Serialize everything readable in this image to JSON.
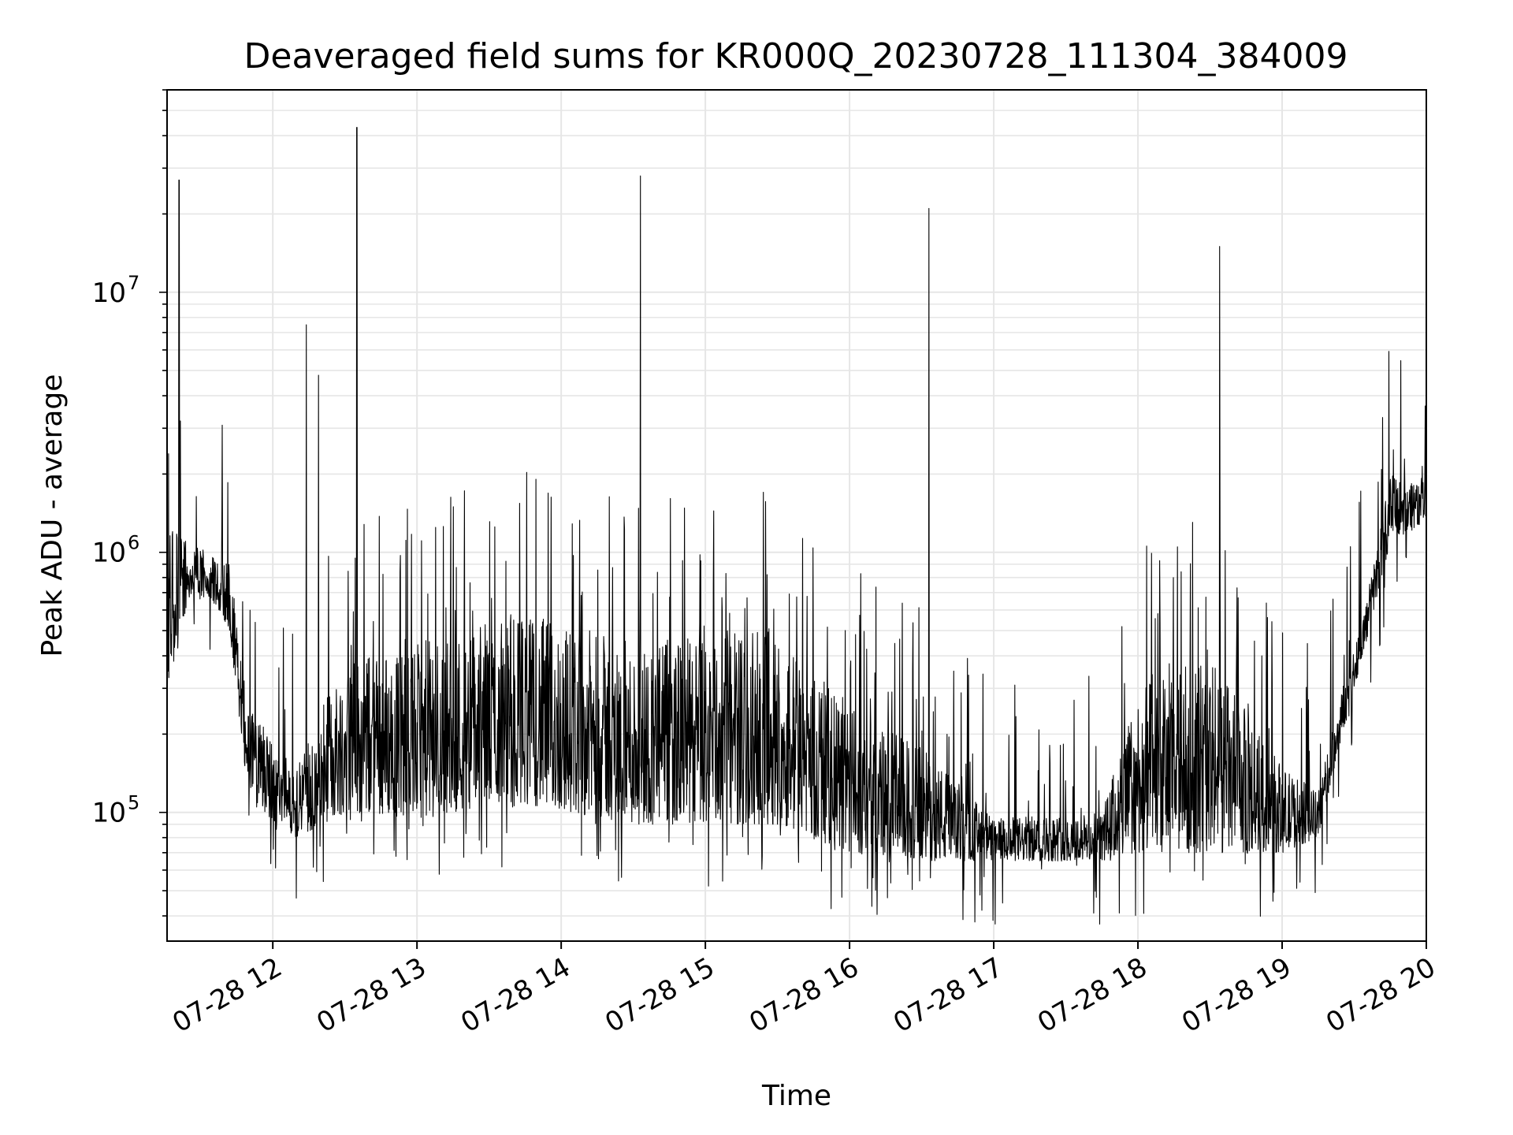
{
  "chart_data": {
    "type": "line",
    "title": "Deaveraged field sums for KR000Q_20230728_111304_384009",
    "xlabel": "Time",
    "ylabel": "Peak ADU - average",
    "y_scale": "log",
    "grid": true,
    "line_color": "#000000",
    "grid_color": "#e6e6e6",
    "xlim": [
      "07-28 11:16",
      "07-28 20:00"
    ],
    "ylim": [
      32000,
      60000000
    ],
    "x_ticks": [
      {
        "value": "07-28 12:00",
        "label": "07-28 12"
      },
      {
        "value": "07-28 13:00",
        "label": "07-28 13"
      },
      {
        "value": "07-28 14:00",
        "label": "07-28 14"
      },
      {
        "value": "07-28 15:00",
        "label": "07-28 15"
      },
      {
        "value": "07-28 16:00",
        "label": "07-28 16"
      },
      {
        "value": "07-28 17:00",
        "label": "07-28 17"
      },
      {
        "value": "07-28 18:00",
        "label": "07-28 18"
      },
      {
        "value": "07-28 19:00",
        "label": "07-28 19"
      },
      {
        "value": "07-28 20:00",
        "label": "07-28 20"
      }
    ],
    "y_ticks": [
      {
        "value": 100000,
        "base": "10",
        "exp": "5"
      },
      {
        "value": 1000000,
        "base": "10",
        "exp": "6"
      },
      {
        "value": 10000000,
        "base": "10",
        "exp": "7"
      }
    ],
    "baseline": [
      {
        "t": "07-28 11:16",
        "lo": 300000,
        "hi": 1400000
      },
      {
        "t": "07-28 11:25",
        "lo": 650000,
        "hi": 1100000
      },
      {
        "t": "07-28 11:35",
        "lo": 650000,
        "hi": 1000000
      },
      {
        "t": "07-28 11:42",
        "lo": 500000,
        "hi": 900000
      },
      {
        "t": "07-28 11:50",
        "lo": 110000,
        "hi": 250000
      },
      {
        "t": "07-28 12:10",
        "lo": 80000,
        "hi": 150000
      },
      {
        "t": "07-28 12:30",
        "lo": 100000,
        "hi": 400000
      },
      {
        "t": "07-28 13:00",
        "lo": 95000,
        "hi": 450000
      },
      {
        "t": "07-28 13:40",
        "lo": 110000,
        "hi": 600000
      },
      {
        "t": "07-28 14:30",
        "lo": 90000,
        "hi": 450000
      },
      {
        "t": "07-28 15:30",
        "lo": 90000,
        "hi": 500000
      },
      {
        "t": "07-28 16:00",
        "lo": 70000,
        "hi": 250000
      },
      {
        "t": "07-28 16:30",
        "lo": 65000,
        "hi": 180000
      },
      {
        "t": "07-28 17:00",
        "lo": 65000,
        "hi": 95000
      },
      {
        "t": "07-28 17:45",
        "lo": 65000,
        "hi": 100000
      },
      {
        "t": "07-28 18:00",
        "lo": 70000,
        "hi": 300000
      },
      {
        "t": "07-28 18:30",
        "lo": 70000,
        "hi": 400000
      },
      {
        "t": "07-28 19:00",
        "lo": 70000,
        "hi": 150000
      },
      {
        "t": "07-28 19:15",
        "lo": 80000,
        "hi": 120000
      },
      {
        "t": "07-28 19:25",
        "lo": 200000,
        "hi": 300000
      },
      {
        "t": "07-28 19:35",
        "lo": 450000,
        "hi": 650000
      },
      {
        "t": "07-28 19:45",
        "lo": 1100000,
        "hi": 2000000
      },
      {
        "t": "07-28 20:00",
        "lo": 1300000,
        "hi": 2000000
      }
    ],
    "spikes": [
      {
        "t": "07-28 11:21",
        "y": 27000000
      },
      {
        "t": "07-28 12:14",
        "y": 7500000
      },
      {
        "t": "07-28 12:19",
        "y": 4800000
      },
      {
        "t": "07-28 12:35",
        "y": 43000000
      },
      {
        "t": "07-28 14:33",
        "y": 28000000
      },
      {
        "t": "07-28 16:33",
        "y": 21000000
      },
      {
        "t": "07-28 18:34",
        "y": 15000000
      }
    ]
  }
}
